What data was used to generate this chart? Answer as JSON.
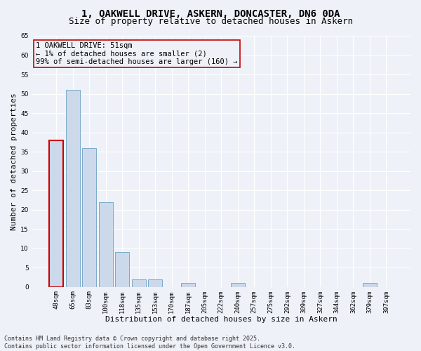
{
  "title_line1": "1, OAKWELL DRIVE, ASKERN, DONCASTER, DN6 0DA",
  "title_line2": "Size of property relative to detached houses in Askern",
  "xlabel": "Distribution of detached houses by size in Askern",
  "ylabel": "Number of detached properties",
  "categories": [
    "48sqm",
    "65sqm",
    "83sqm",
    "100sqm",
    "118sqm",
    "135sqm",
    "153sqm",
    "170sqm",
    "187sqm",
    "205sqm",
    "222sqm",
    "240sqm",
    "257sqm",
    "275sqm",
    "292sqm",
    "309sqm",
    "327sqm",
    "344sqm",
    "362sqm",
    "379sqm",
    "397sqm"
  ],
  "values": [
    38,
    51,
    36,
    22,
    9,
    2,
    2,
    0,
    1,
    0,
    0,
    1,
    0,
    0,
    0,
    0,
    0,
    0,
    0,
    1,
    0
  ],
  "bar_color": "#ccd9ea",
  "bar_edge_color": "#7aaaca",
  "highlight_bar_index": 0,
  "highlight_bar_edge_color": "#cc0000",
  "annotation_text": "1 OAKWELL DRIVE: 51sqm\n← 1% of detached houses are smaller (2)\n99% of semi-detached houses are larger (160) →",
  "ylim": [
    0,
    65
  ],
  "yticks": [
    0,
    5,
    10,
    15,
    20,
    25,
    30,
    35,
    40,
    45,
    50,
    55,
    60,
    65
  ],
  "footer_text": "Contains HM Land Registry data © Crown copyright and database right 2025.\nContains public sector information licensed under the Open Government Licence v3.0.",
  "background_color": "#eef2f8",
  "grid_color": "#ffffff",
  "title_fontsize": 10,
  "subtitle_fontsize": 9,
  "axis_label_fontsize": 8,
  "tick_fontsize": 6.5,
  "annotation_fontsize": 7.5,
  "footer_fontsize": 6
}
